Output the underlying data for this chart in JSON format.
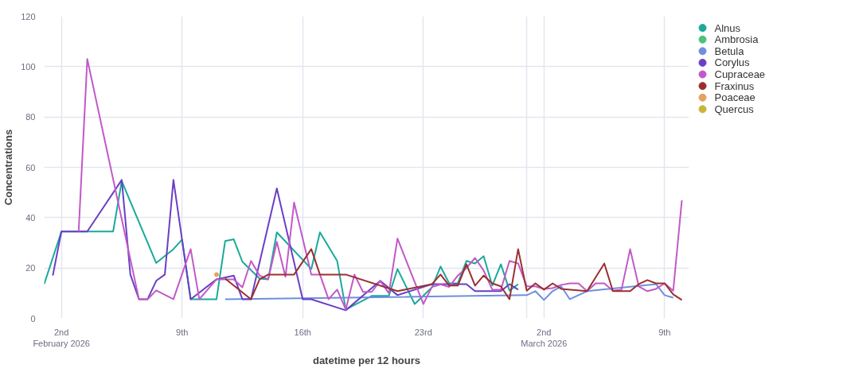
{
  "chart_data": {
    "type": "line",
    "xlabel": "datetime per 12 hours",
    "ylabel": "Concentrations",
    "xlim": [
      "2026-02-01T00:00",
      "2026-03-10T10:00"
    ],
    "ylim": [
      0,
      120
    ],
    "yticks": [
      0,
      20,
      40,
      60,
      80,
      100,
      120
    ],
    "xticks": [
      {
        "value": "2026-02-02",
        "label": "2nd\nFebruary 2026"
      },
      {
        "value": "2026-02-09",
        "label": "9th"
      },
      {
        "value": "2026-02-16",
        "label": "16th"
      },
      {
        "value": "2026-02-23",
        "label": "23rd"
      },
      {
        "value": "2026-03-01",
        "label": null
      },
      {
        "value": "2026-03-02",
        "label": "2nd\nMarch 2026"
      },
      {
        "value": "2026-03-09",
        "label": "9th"
      }
    ],
    "grid": true,
    "legend": "right",
    "marker": "none",
    "line_style": "solid",
    "series": [
      {
        "name": "Alnus",
        "color": "#1aa99a",
        "x": [
          "2026-02-01T00:00",
          "2026-02-02T00:00",
          "2026-02-05T00:00",
          "2026-02-05T12:00",
          "2026-02-07T12:00",
          "2026-02-08T12:00",
          "2026-02-09T00:00",
          "2026-02-09T12:00",
          "2026-02-11T00:00",
          "2026-02-11T12:00",
          "2026-02-12T00:00",
          "2026-02-12T12:00",
          "2026-02-13T12:00",
          "2026-02-14T00:00",
          "2026-02-14T12:00",
          "2026-02-16T12:00",
          "2026-02-17T00:00",
          "2026-02-18T00:00",
          "2026-02-18T12:00",
          "2026-02-20T00:00",
          "2026-02-21T00:00",
          "2026-02-21T12:00",
          "2026-02-22T12:00",
          "2026-02-23T12:00",
          "2026-02-24T00:00",
          "2026-02-24T12:00",
          "2026-02-25T00:00",
          "2026-02-25T12:00",
          "2026-02-26T00:00",
          "2026-02-26T12:00",
          "2026-02-27T00:00",
          "2026-02-27T12:00",
          "2026-02-28T00:00",
          "2026-02-28T12:00"
        ],
        "values": [
          13.6,
          34.5,
          34.5,
          54.5,
          22,
          27.5,
          31.3,
          7.6,
          7.6,
          30.7,
          31.4,
          22.5,
          15.8,
          15.5,
          34.2,
          19.6,
          34.2,
          22.8,
          3.5,
          8.9,
          8.9,
          19.6,
          5.7,
          12.3,
          20.6,
          13.9,
          13.9,
          22.8,
          21.8,
          24.7,
          13,
          21.5,
          11,
          13.6
        ]
      },
      {
        "name": "Ambrosia",
        "color": "#4cc27a"
      },
      {
        "name": "Betula",
        "color": "#6e8fdc",
        "x": [
          "2026-02-11T12:00",
          "2026-03-01T00:00",
          "2026-03-01T12:00",
          "2026-03-02T00:00",
          "2026-03-02T12:00",
          "2026-03-03T00:00",
          "2026-03-03T12:00",
          "2026-03-04T12:00",
          "2026-03-08T12:00",
          "2026-03-09T00:00",
          "2026-03-09T12:00"
        ],
        "values": [
          7.6,
          9.2,
          10.8,
          7.3,
          10.8,
          12.7,
          7.6,
          10.8,
          13.6,
          9.2,
          8.2
        ]
      },
      {
        "name": "Corylus",
        "color": "#6a3fc4",
        "x": [
          "2026-02-01T12:00",
          "2026-02-02T00:00",
          "2026-02-03T12:00",
          "2026-02-05T12:00",
          "2026-02-06T00:00",
          "2026-02-06T12:00",
          "2026-02-07T00:00",
          "2026-02-07T12:00",
          "2026-02-08T00:00",
          "2026-02-08T12:00",
          "2026-02-09T12:00",
          "2026-02-11T00:00",
          "2026-02-12T00:00",
          "2026-02-12T12:00",
          "2026-02-13T00:00",
          "2026-02-14T12:00",
          "2026-02-16T00:00",
          "2026-02-16T12:00",
          "2026-02-18T12:00",
          "2026-02-20T12:00",
          "2026-02-21T12:00",
          "2026-02-23T12:00",
          "2026-02-25T00:00",
          "2026-02-25T12:00",
          "2026-02-26T00:00",
          "2026-02-27T12:00",
          "2026-02-28T00:00",
          "2026-02-28T12:00"
        ],
        "values": [
          17,
          34.5,
          34.5,
          55,
          17.4,
          7.6,
          7.6,
          14.9,
          17.4,
          55,
          7.6,
          15.5,
          17,
          7.6,
          7.6,
          51.6,
          7.6,
          7.6,
          3.2,
          14.9,
          9.2,
          13.6,
          13.6,
          13.6,
          10.8,
          10.8,
          13.6,
          11.4
        ]
      },
      {
        "name": "Cupraceae",
        "color": "#c259c8",
        "x": [
          "2026-02-03T00:00",
          "2026-02-03T12:00",
          "2026-02-06T12:00",
          "2026-02-07T00:00",
          "2026-02-07T12:00",
          "2026-02-08T12:00",
          "2026-02-09T12:00",
          "2026-02-10T00:00",
          "2026-02-11T00:00",
          "2026-02-12T00:00",
          "2026-02-12T12:00",
          "2026-02-13T00:00",
          "2026-02-13T12:00",
          "2026-02-14T00:00",
          "2026-02-14T12:00",
          "2026-02-15T00:00",
          "2026-02-15T12:00",
          "2026-02-16T12:00",
          "2026-02-17T00:00",
          "2026-02-17T12:00",
          "2026-02-18T00:00",
          "2026-02-18T12:00",
          "2026-02-19T00:00",
          "2026-02-19T12:00",
          "2026-02-20T00:00",
          "2026-02-20T12:00",
          "2026-02-21T00:00",
          "2026-02-21T12:00",
          "2026-02-23T00:00",
          "2026-02-23T12:00",
          "2026-02-24T00:00",
          "2026-02-24T12:00",
          "2026-02-25T00:00",
          "2026-02-25T12:00",
          "2026-02-26T00:00",
          "2026-02-26T12:00",
          "2026-02-27T00:00",
          "2026-02-27T12:00",
          "2026-02-28T00:00",
          "2026-02-28T12:00",
          "2026-03-01T00:00",
          "2026-03-01T12:00",
          "2026-03-02T00:00",
          "2026-03-02T12:00",
          "2026-03-03T00:00",
          "2026-03-03T12:00",
          "2026-03-04T00:00",
          "2026-03-04T12:00",
          "2026-03-05T00:00",
          "2026-03-05T12:00",
          "2026-03-06T00:00",
          "2026-03-06T12:00",
          "2026-03-07T00:00",
          "2026-03-07T12:00",
          "2026-03-08T00:00",
          "2026-03-08T12:00",
          "2026-03-09T00:00",
          "2026-03-09T12:00",
          "2026-03-10T00:00"
        ],
        "values": [
          34.5,
          103,
          7.6,
          7.6,
          11.1,
          7.6,
          27.5,
          7.6,
          15.5,
          15.5,
          12.3,
          22.8,
          17,
          15.5,
          30.4,
          16.5,
          46,
          17.4,
          17.4,
          7.6,
          11.4,
          3.5,
          17.4,
          10.5,
          10.5,
          14.9,
          10,
          31.7,
          5.7,
          12.5,
          13.5,
          12.5,
          17,
          20,
          24,
          19,
          11.4,
          11.4,
          22.8,
          21.8,
          12.7,
          12.7,
          11.7,
          12,
          13.3,
          13.9,
          13.9,
          10.8,
          13.9,
          13.9,
          11,
          11.4,
          27.5,
          12.7,
          10.8,
          11.7,
          13.9,
          11,
          46.9
        ]
      },
      {
        "name": "Fraxinus",
        "color": "#9b2f2f",
        "x": [
          "2026-02-11T12:00",
          "2026-02-13T00:00",
          "2026-02-13T12:00",
          "2026-02-14T00:00",
          "2026-02-15T12:00",
          "2026-02-16T12:00",
          "2026-02-17T00:00",
          "2026-02-18T12:00",
          "2026-02-21T12:00",
          "2026-02-23T12:00",
          "2026-02-24T00:00",
          "2026-02-24T12:00",
          "2026-02-25T00:00",
          "2026-02-25T12:00",
          "2026-02-26T00:00",
          "2026-02-26T12:00",
          "2026-02-27T00:00",
          "2026-02-27T12:00",
          "2026-02-28T00:00",
          "2026-02-28T12:00",
          "2026-03-01T00:00",
          "2026-03-01T12:00",
          "2026-03-02T00:00",
          "2026-03-02T12:00",
          "2026-03-03T00:00",
          "2026-03-04T12:00",
          "2026-03-05T12:00",
          "2026-03-06T00:00",
          "2026-03-07T00:00",
          "2026-03-07T12:00",
          "2026-03-08T00:00",
          "2026-03-08T12:00",
          "2026-03-09T00:00",
          "2026-03-09T12:00",
          "2026-03-10T00:00"
        ],
        "values": [
          15.8,
          7.6,
          15.5,
          17.4,
          17.4,
          27.5,
          17.4,
          17.4,
          10.8,
          13.6,
          17.4,
          13,
          13,
          21.5,
          13,
          17,
          13.9,
          12.7,
          7.6,
          27.5,
          11,
          13.9,
          11.4,
          13.9,
          11.7,
          10.8,
          21.8,
          10.8,
          10.8,
          13.6,
          15.2,
          13.9,
          13.9,
          9.5,
          7.3
        ]
      },
      {
        "name": "Poaceae",
        "color": "#e6a060",
        "type": "scatter",
        "marker": "circle",
        "x": [
          "2026-02-11T00:00"
        ],
        "values": [
          17.4
        ]
      },
      {
        "name": "Quercus",
        "color": "#c8b53a"
      }
    ]
  }
}
